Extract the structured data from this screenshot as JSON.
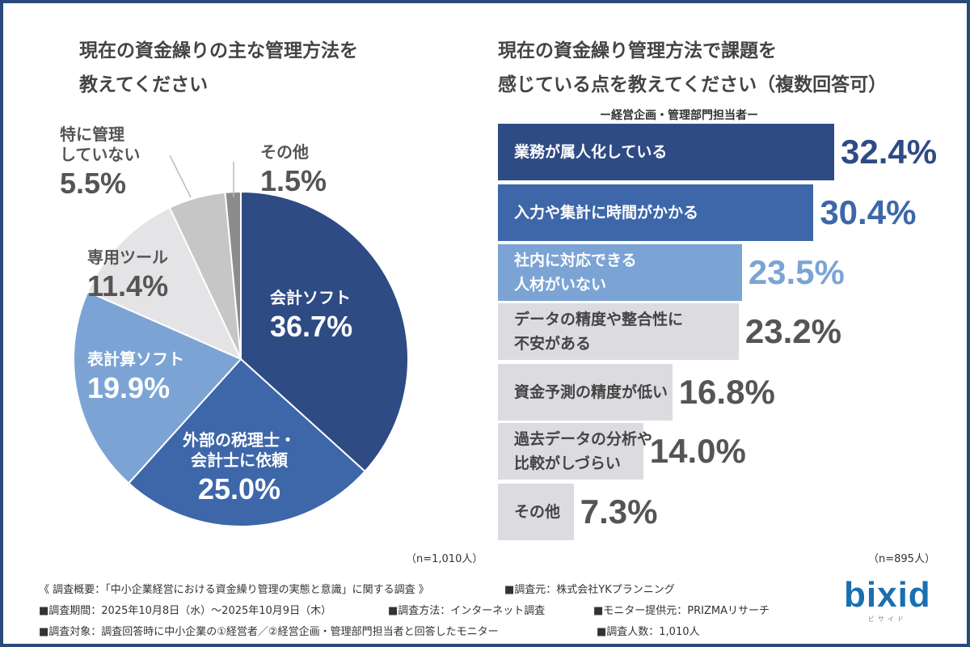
{
  "left": {
    "title_line1": "現在の資金繰りの主な管理方法を",
    "title_line2": "教えてください",
    "n": "（n=1,010人）"
  },
  "right": {
    "title_line1": "現在の資金繰り管理方法で課題を",
    "title_line2": "感じている点を教えてください（複数回答可）",
    "subtitle": "ー経営企画・管理部門担当者ー",
    "n": "（n=895人）"
  },
  "chart_data": [
    {
      "type": "pie",
      "start": "top",
      "direction": "clockwise",
      "labels": [
        "会計ソフト",
        "外部の税理士・会計士に依頼",
        "表計算ソフト",
        "専用ツール",
        "特に管理していない",
        "その他"
      ],
      "display_labels": [
        [
          "会計ソフト"
        ],
        [
          "外部の税理士・",
          "会計士に依頼"
        ],
        [
          "表計算ソフト"
        ],
        [
          "専用ツール"
        ],
        [
          "特に管理",
          "していない"
        ],
        [
          "その他"
        ]
      ],
      "values": [
        36.7,
        25.0,
        19.9,
        11.4,
        5.5,
        1.5
      ],
      "value_labels": [
        "36.7%",
        "25.0%",
        "19.9%",
        "11.4%",
        "5.5%",
        "1.5%"
      ],
      "colors": [
        "#2f4b84",
        "#3e67a9",
        "#7ba4d4",
        "#e4e4e7",
        "#c6c6c6",
        "#8c8c8c"
      ]
    },
    {
      "type": "bar",
      "orientation": "horizontal",
      "categories": [
        "業務が属人化している",
        "入力や集計に時間がかかる",
        "社内に対応できる人材がいない",
        "データの精度や整合性に不安がある",
        "資金予測の精度が低い",
        "過去データの分析や比較がしづらい",
        "その他"
      ],
      "display_labels": [
        [
          "業務が属人化している"
        ],
        [
          "入力や集計に時間がかかる"
        ],
        [
          "社内に対応できる",
          "人材がいない"
        ],
        [
          "データの精度や整合性に",
          "不安がある"
        ],
        [
          "資金予測の精度が低い"
        ],
        [
          "過去データの分析や",
          "比較がしづらい"
        ],
        [
          "その他"
        ]
      ],
      "values": [
        32.4,
        30.4,
        23.5,
        23.2,
        16.8,
        14.0,
        7.3
      ],
      "value_labels": [
        "32.4%",
        "30.4%",
        "23.5%",
        "23.2%",
        "16.8%",
        "14.0%",
        "7.3%"
      ],
      "unit": "%",
      "colors": [
        "#2f4b84",
        "#3e67a9",
        "#7ba4d4",
        "#dcdce0",
        "#dcdce0",
        "#dcdce0",
        "#dcdce0"
      ],
      "value_colors": [
        "#2f4b84",
        "#3e67a9",
        "#7ba4d4",
        "#555555",
        "#555555",
        "#555555",
        "#555555"
      ]
    }
  ],
  "footer": {
    "overview": "《 調査概要：「中小企業経営における資金繰り管理の実態と意識」に関する調査 》",
    "source": "■調査元：株式会社YKプランニング",
    "period": "■調査期間：2025年10月8日（水）～2025年10月9日（木）",
    "method": "■調査方法：インターネット調査",
    "monitor": "■モニター提供元：PRIZMAリサーチ",
    "target": "■調査対象：調査回答時に中小企業の①経営者／②経営企画・管理部門担当者と回答したモニター",
    "count": "■調査人数：1,010人"
  },
  "logo": {
    "text": "bixid",
    "sub": "ビサイド",
    "color": "#1a6fb0"
  }
}
